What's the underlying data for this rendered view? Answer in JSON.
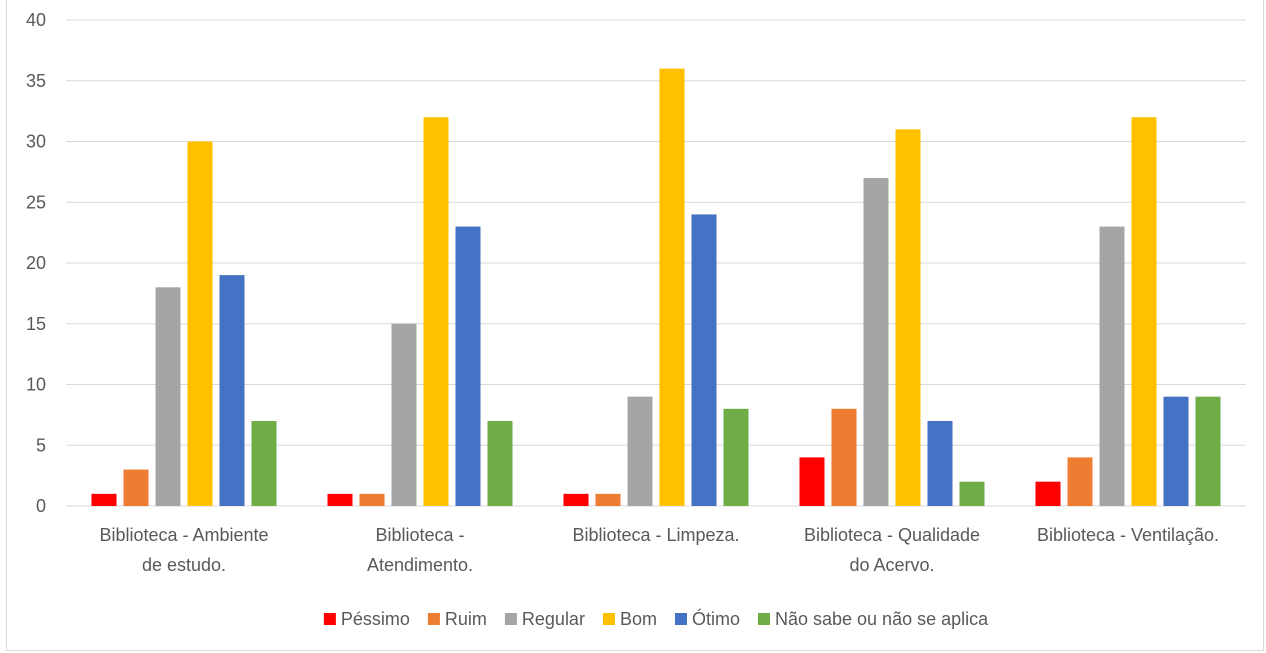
{
  "chart_data": {
    "type": "bar",
    "title": "",
    "xlabel": "",
    "ylabel": "",
    "ylim": [
      0,
      40
    ],
    "yticks": [
      0,
      5,
      10,
      15,
      20,
      25,
      30,
      35,
      40
    ],
    "grid": true,
    "legend_position": "bottom",
    "categories": [
      [
        "Biblioteca - Ambiente",
        "de estudo."
      ],
      [
        "Biblioteca -",
        "Atendimento."
      ],
      [
        "Biblioteca - Limpeza."
      ],
      [
        "Biblioteca - Qualidade",
        "do Acervo."
      ],
      [
        "Biblioteca - Ventilação."
      ]
    ],
    "series": [
      {
        "name": "Péssimo",
        "color": "#ff0000",
        "values": [
          1,
          1,
          1,
          4,
          2
        ]
      },
      {
        "name": "Ruim",
        "color": "#ed7d31",
        "values": [
          3,
          1,
          1,
          8,
          4
        ]
      },
      {
        "name": "Regular",
        "color": "#a5a5a5",
        "values": [
          18,
          15,
          9,
          27,
          23
        ]
      },
      {
        "name": "Bom",
        "color": "#ffc000",
        "values": [
          30,
          32,
          36,
          31,
          32
        ]
      },
      {
        "name": "Ótimo",
        "color": "#4472c4",
        "values": [
          19,
          23,
          24,
          7,
          9
        ]
      },
      {
        "name": "Não sabe ou não se aplica",
        "color": "#70ad47",
        "values": [
          7,
          7,
          8,
          2,
          9
        ]
      }
    ]
  }
}
